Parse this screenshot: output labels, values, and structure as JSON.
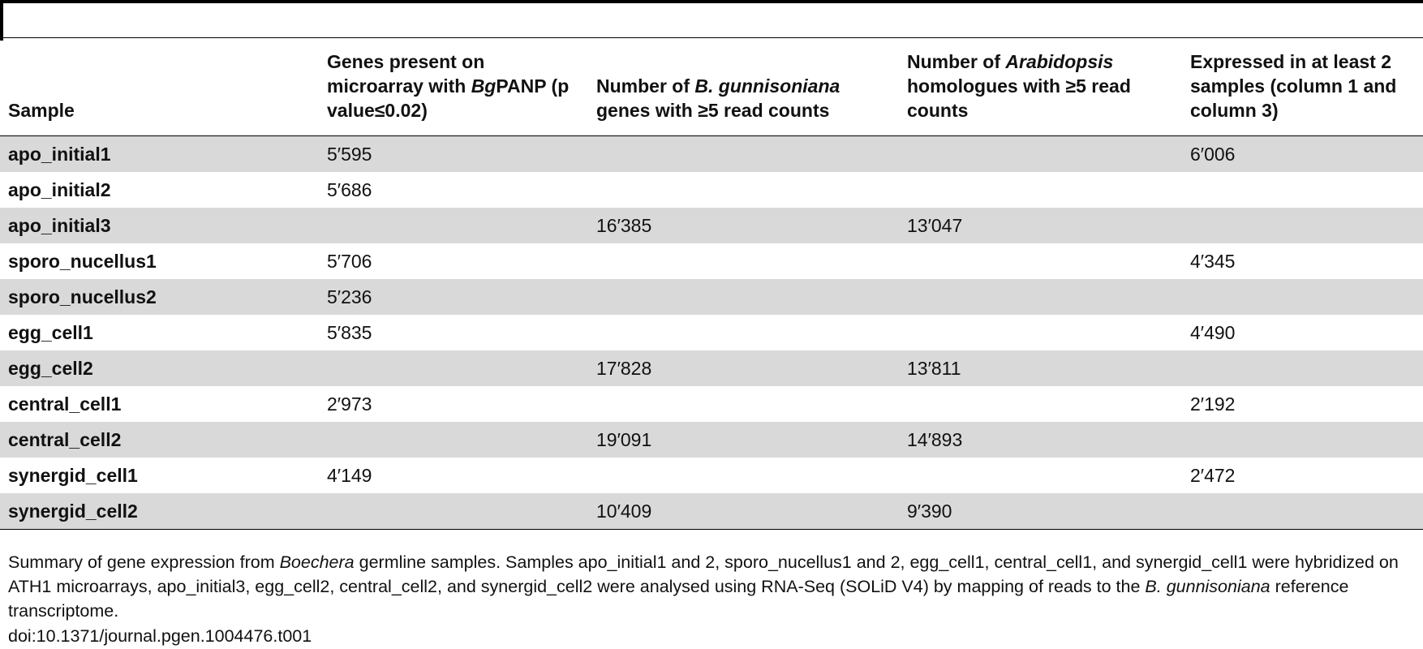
{
  "table": {
    "headers": [
      {
        "parts": [
          {
            "text": "Sample"
          }
        ]
      },
      {
        "parts": [
          {
            "text": "Genes present on microarray with "
          },
          {
            "text": "Bg",
            "italic": true
          },
          {
            "text": "PANP (p value≤0.02)"
          }
        ]
      },
      {
        "parts": [
          {
            "text": "Number of "
          },
          {
            "text": "B. gunnisoniana",
            "italic": true
          },
          {
            "text": " genes with ≥5 read counts"
          }
        ]
      },
      {
        "parts": [
          {
            "text": "Number of "
          },
          {
            "text": "Arabidopsis",
            "italic": true
          },
          {
            "text": " homologues with ≥5 read counts"
          }
        ]
      },
      {
        "parts": [
          {
            "text": "Expressed in at least 2 samples (column 1 and column 3)"
          }
        ]
      }
    ],
    "rows": [
      {
        "sample": "apo_initial1",
        "values": [
          "5′595",
          "",
          "",
          "6′006"
        ],
        "shaded": true
      },
      {
        "sample": "apo_initial2",
        "values": [
          "5′686",
          "",
          "",
          ""
        ],
        "shaded": false
      },
      {
        "sample": "apo_initial3",
        "values": [
          "",
          "16′385",
          "13′047",
          ""
        ],
        "shaded": true
      },
      {
        "sample": "sporo_nucellus1",
        "values": [
          "5′706",
          "",
          "",
          "4′345"
        ],
        "shaded": false
      },
      {
        "sample": "sporo_nucellus2",
        "values": [
          "5′236",
          "",
          "",
          ""
        ],
        "shaded": true
      },
      {
        "sample": "egg_cell1",
        "values": [
          "5′835",
          "",
          "",
          "4′490"
        ],
        "shaded": false
      },
      {
        "sample": "egg_cell2",
        "values": [
          "",
          "17′828",
          "13′811",
          ""
        ],
        "shaded": true
      },
      {
        "sample": "central_cell1",
        "values": [
          "2′973",
          "",
          "",
          "2′192"
        ],
        "shaded": false
      },
      {
        "sample": "central_cell2",
        "values": [
          "",
          "19′091",
          "14′893",
          ""
        ],
        "shaded": true
      },
      {
        "sample": "synergid_cell1",
        "values": [
          "4′149",
          "",
          "",
          "2′472"
        ],
        "shaded": false
      },
      {
        "sample": "synergid_cell2",
        "values": [
          "",
          "10′409",
          "9′390",
          ""
        ],
        "shaded": true
      }
    ]
  },
  "caption": {
    "parts": [
      {
        "text": "Summary of gene expression from "
      },
      {
        "text": "Boechera",
        "italic": true
      },
      {
        "text": " germline samples. Samples apo_initial1 and 2, sporo_nucellus1 and 2, egg_cell1, central_cell1, and synergid_cell1 were hybridized on ATH1 microarrays, apo_initial3, egg_cell2, central_cell2, and synergid_cell2 were analysed using RNA-Seq (SOLiD V4) by mapping of reads to the "
      },
      {
        "text": "B. gunnisoniana",
        "italic": true
      },
      {
        "text": " reference transcriptome."
      }
    ]
  },
  "doi": "doi:10.1371/journal.pgen.1004476.t001",
  "colors": {
    "row_shade": "#d9d9d9",
    "rule": "#000000"
  }
}
